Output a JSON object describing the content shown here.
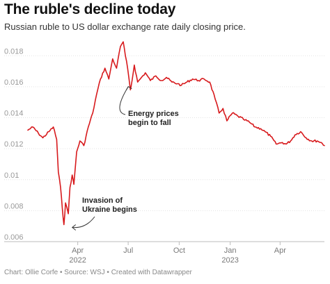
{
  "header": {
    "title": "The ruble's decline today",
    "subtitle": "Russian ruble to US dollar exchange rate daily closing price."
  },
  "footer": {
    "credit": "Chart: Ollie Corfe • Source: WSJ • Created with Datawrapper"
  },
  "chart_data": {
    "type": "line",
    "title": "The ruble's decline today",
    "subtitle": "Russian ruble to US dollar exchange rate daily closing price.",
    "xlabel": "",
    "ylabel": "",
    "ylim": [
      0.006,
      0.019
    ],
    "xlim": [
      "2022-01-01",
      "2023-06-20"
    ],
    "grid": "horizontal",
    "legend": "none",
    "line_color": "#d7191c",
    "y_ticks": [
      {
        "value": 0.006,
        "label": "0.006"
      },
      {
        "value": 0.008,
        "label": "0.008"
      },
      {
        "value": 0.01,
        "label": "0.01"
      },
      {
        "value": 0.012,
        "label": "0.012"
      },
      {
        "value": 0.014,
        "label": "0.014"
      },
      {
        "value": 0.016,
        "label": "0.016"
      },
      {
        "value": 0.018,
        "label": "0.018"
      }
    ],
    "x_ticks": [
      {
        "date": "2022-04-01",
        "label": "Apr",
        "sublabel": "2022"
      },
      {
        "date": "2022-07-01",
        "label": "Jul",
        "sublabel": ""
      },
      {
        "date": "2022-10-01",
        "label": "Oct",
        "sublabel": ""
      },
      {
        "date": "2023-01-01",
        "label": "Jan",
        "sublabel": "2023"
      },
      {
        "date": "2023-04-01",
        "label": "Apr",
        "sublabel": ""
      }
    ],
    "series": [
      {
        "x": [
          "2022-01-01",
          "2022-01-10",
          "2022-01-20",
          "2022-01-28",
          "2022-02-08",
          "2022-02-16",
          "2022-02-22",
          "2022-02-25",
          "2022-03-01",
          "2022-03-04",
          "2022-03-07",
          "2022-03-10",
          "2022-03-15",
          "2022-03-18",
          "2022-03-22",
          "2022-03-25",
          "2022-03-30",
          "2022-04-05",
          "2022-04-12",
          "2022-04-20",
          "2022-04-28",
          "2022-05-05",
          "2022-05-12",
          "2022-05-20",
          "2022-05-27",
          "2022-06-03",
          "2022-06-10",
          "2022-06-17",
          "2022-06-22",
          "2022-06-26",
          "2022-06-30",
          "2022-07-05",
          "2022-07-08",
          "2022-07-12",
          "2022-07-18",
          "2022-07-25",
          "2022-08-01",
          "2022-08-10",
          "2022-08-20",
          "2022-08-30",
          "2022-09-08",
          "2022-09-18",
          "2022-09-28",
          "2022-10-05",
          "2022-10-15",
          "2022-10-25",
          "2022-11-05",
          "2022-11-15",
          "2022-11-25",
          "2022-12-05",
          "2022-12-12",
          "2022-12-19",
          "2022-12-26",
          "2023-01-05",
          "2023-01-15",
          "2023-01-25",
          "2023-02-05",
          "2023-02-15",
          "2023-02-25",
          "2023-03-05",
          "2023-03-15",
          "2023-03-25",
          "2023-04-05",
          "2023-04-12",
          "2023-04-20",
          "2023-04-28",
          "2023-05-08",
          "2023-05-18",
          "2023-05-28",
          "2023-06-07",
          "2023-06-14",
          "2023-06-20"
        ],
        "values": [
          0.0132,
          0.0134,
          0.013,
          0.0127,
          0.0131,
          0.0134,
          0.0126,
          0.0105,
          0.0095,
          0.0082,
          0.0071,
          0.0085,
          0.0078,
          0.0095,
          0.0103,
          0.0097,
          0.0118,
          0.0125,
          0.0122,
          0.0134,
          0.0143,
          0.0155,
          0.0165,
          0.0172,
          0.0165,
          0.0178,
          0.0172,
          0.0186,
          0.0189,
          0.018,
          0.0172,
          0.0158,
          0.0164,
          0.0174,
          0.0163,
          0.0166,
          0.0169,
          0.0164,
          0.0167,
          0.0164,
          0.0166,
          0.0163,
          0.0162,
          0.0161,
          0.0163,
          0.0165,
          0.0164,
          0.0165,
          0.0163,
          0.0152,
          0.0143,
          0.0146,
          0.0138,
          0.0143,
          0.0141,
          0.0139,
          0.0137,
          0.0134,
          0.0133,
          0.0131,
          0.0128,
          0.0123,
          0.0124,
          0.0123,
          0.0125,
          0.0129,
          0.0131,
          0.0127,
          0.0125,
          0.0125,
          0.0124,
          0.0122
        ]
      }
    ],
    "annotations": [
      {
        "lines": [
          "Energy prices",
          "begin to fall"
        ],
        "date": "2022-07-05",
        "value": 0.0161
      },
      {
        "lines": [
          "Invasion of",
          "Ukraine begins"
        ],
        "date": "2022-03-07",
        "value": 0.0071
      }
    ]
  }
}
